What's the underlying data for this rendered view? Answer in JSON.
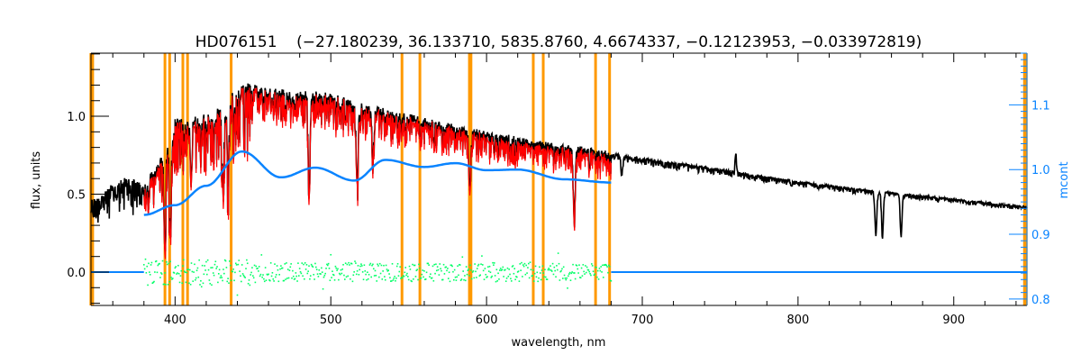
{
  "chart_data": {
    "type": "line",
    "title": "HD076151    (−27.180239, 36.133710, 5835.8760, 4.6674337, −0.12123953, −0.033972819)",
    "xlabel": "wavelength, nm",
    "ylabel": "flux, units",
    "y2label": "mcont",
    "xlim": [
      346,
      947
    ],
    "ylim": [
      -0.214,
      1.405
    ],
    "y2lim": [
      0.79,
      1.18
    ],
    "xticks": [
      "400",
      "500",
      "600",
      "700",
      "800",
      "900"
    ],
    "xtick_values": [
      400,
      500,
      600,
      700,
      800,
      900
    ],
    "yticks": [
      "0.0",
      "0.5",
      "1.0"
    ],
    "ytick_values": [
      0,
      0.5,
      1.0
    ],
    "y2ticks": [
      "0.8",
      "0.9",
      "1.0",
      "1.1"
    ],
    "y2tick_values": [
      0.8,
      0.9,
      1.0,
      1.1
    ],
    "colors": {
      "observed": "#000000",
      "model": "#ff0000",
      "continuum": "#0a84ff",
      "residuals": "#00ff66",
      "masks": "#ff9900",
      "axis2": "#0a84ff"
    },
    "mask_lines_nm": [
      346.5,
      393.5,
      396.5,
      405,
      408,
      436,
      545.7,
      557.2,
      589,
      590,
      630,
      636.4,
      670,
      679,
      946
    ],
    "series": [
      {
        "name": "observed flux",
        "axis": "left",
        "x": [
          346,
          360,
          370,
          380,
          390,
          400,
          410,
          420,
          430,
          440,
          450,
          460,
          480,
          500,
          520,
          550,
          580,
          600,
          630,
          650,
          680,
          700,
          750,
          800,
          850,
          900,
          947
        ],
        "y": [
          0.45,
          0.55,
          0.6,
          0.55,
          0.7,
          0.95,
          1.0,
          0.98,
          1.05,
          1.15,
          1.2,
          1.17,
          1.15,
          1.13,
          1.07,
          1.0,
          0.93,
          0.89,
          0.84,
          0.81,
          0.76,
          0.73,
          0.66,
          0.58,
          0.52,
          0.47,
          0.42
        ]
      },
      {
        "name": "model flux",
        "axis": "left",
        "xrange": [
          380,
          680
        ]
      },
      {
        "name": "continuum (mcont)",
        "axis": "right",
        "x": [
          380,
          400,
          420,
          443,
          468,
          490,
          515,
          535,
          560,
          580,
          600,
          620,
          650,
          680
        ],
        "y": [
          0.93,
          0.945,
          0.975,
          1.028,
          0.988,
          1.003,
          0.983,
          1.015,
          1.004,
          1.01,
          0.999,
          1.0,
          0.985,
          0.98
        ]
      },
      {
        "name": "residuals",
        "axis": "left",
        "xrange": [
          380,
          680
        ],
        "level": 0.0
      },
      {
        "name": "zero line",
        "axis": "left",
        "level": 0.0
      }
    ],
    "absorption_lines": [
      {
        "nm": 393.4,
        "depth": 0.75
      },
      {
        "nm": 396.8,
        "depth": 0.7
      },
      {
        "nm": 410.2,
        "depth": 0.4
      },
      {
        "nm": 430.8,
        "depth": 0.45
      },
      {
        "nm": 434.0,
        "depth": 0.4
      },
      {
        "nm": 486.1,
        "depth": 0.55
      },
      {
        "nm": 517.0,
        "depth": 0.45
      },
      {
        "nm": 527.0,
        "depth": 0.3
      },
      {
        "nm": 589.3,
        "depth": 0.4
      },
      {
        "nm": 656.3,
        "depth": 0.58
      },
      {
        "nm": 686.9,
        "depth": 0.15
      },
      {
        "nm": 850,
        "depth": 0.55
      },
      {
        "nm": 854.2,
        "depth": 0.55
      },
      {
        "nm": 866.2,
        "depth": 0.55
      }
    ],
    "emission_spikes": [
      {
        "nm": 760,
        "height": 0.22
      }
    ],
    "grid": false,
    "legend": "none"
  }
}
